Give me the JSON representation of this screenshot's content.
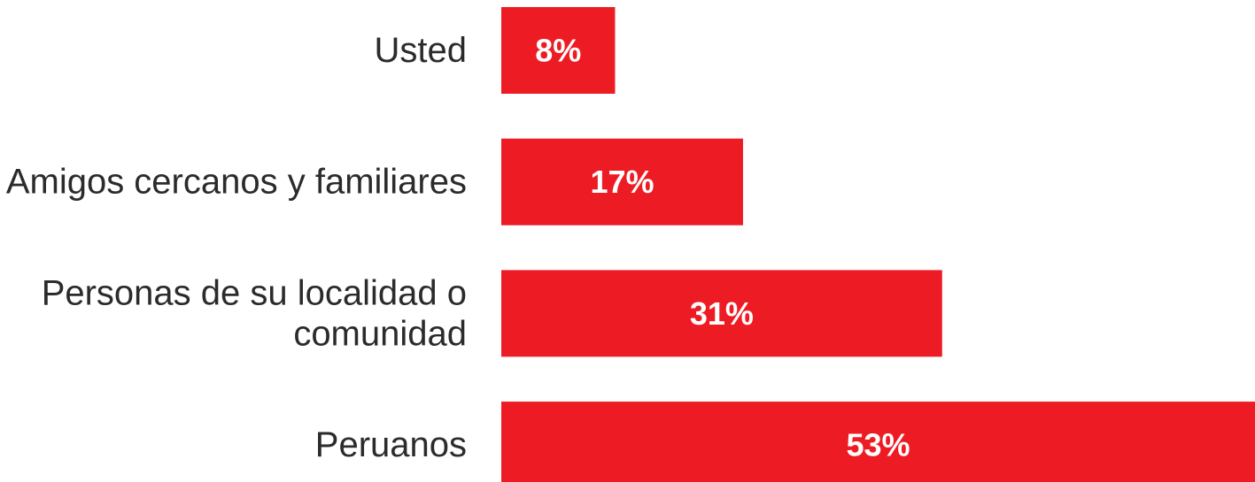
{
  "colors": {
    "bar": "#ed1c24",
    "label_text": "#2b2b2b",
    "value_text": "#ffffff",
    "background": "#ffffff"
  },
  "chart_data": {
    "type": "bar",
    "orientation": "horizontal",
    "categories": [
      [
        "Usted"
      ],
      [
        "Amigos cercanos y familiares"
      ],
      [
        "Personas de su localidad o",
        "comunidad"
      ],
      [
        "Peruanos"
      ]
    ],
    "values": [
      8,
      17,
      31,
      53
    ],
    "value_labels": [
      "8%",
      "17%",
      "31%",
      "53%"
    ],
    "unit": "%",
    "xlim": [
      0,
      53
    ],
    "grid": false,
    "legend": "none",
    "title": "",
    "xlabel": "",
    "ylabel": ""
  }
}
